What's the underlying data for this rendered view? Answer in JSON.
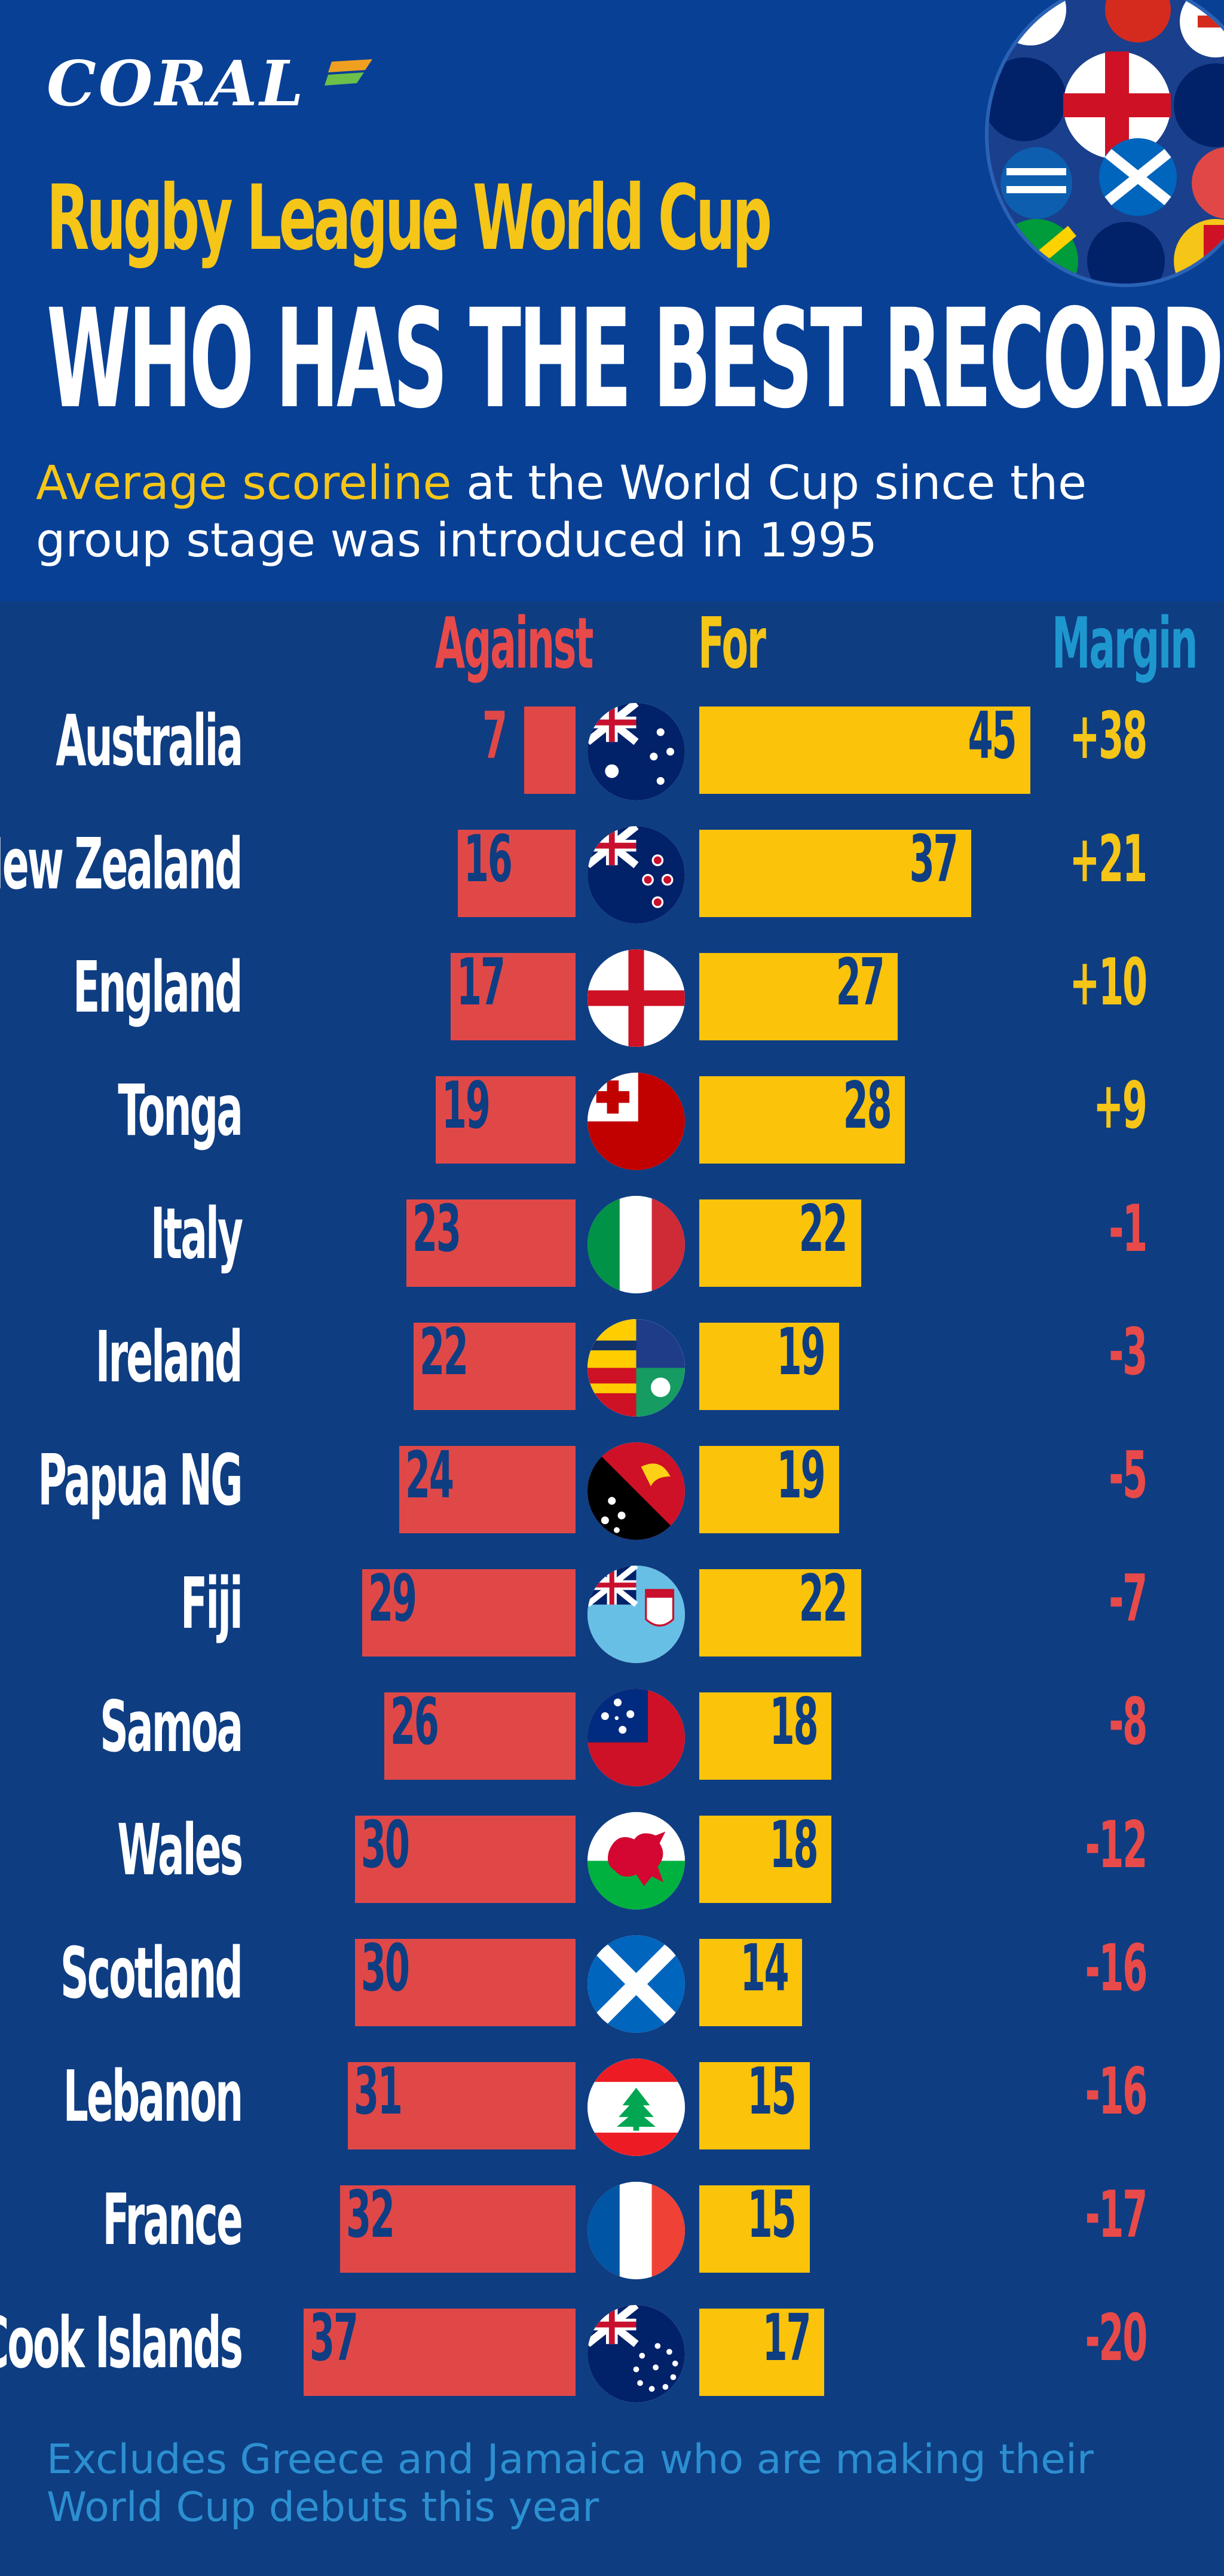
{
  "brand": {
    "name": "CORAL"
  },
  "header": {
    "title_line_1": "Rugby League World Cup",
    "title_line_2": "WHO HAS THE BEST RECORD?",
    "subtitle_highlight": "Average scoreline",
    "subtitle_rest": " at the World Cup since the group stage was introduced in 1995"
  },
  "columns": {
    "against": "Against",
    "for": "For",
    "margin": "Margin"
  },
  "colors": {
    "background": "#0e3d82",
    "header_background": "#084096",
    "against": "#e04848",
    "for": "#fcc30b",
    "margin_header": "#1e97cf",
    "positive_margin": "#f5c518",
    "negative_margin": "#e84a4a"
  },
  "chart_data": {
    "type": "bar",
    "title": "Average scoreline at the World Cup since the group stage was introduced in 1995",
    "categories": [
      "Australia",
      "New Zealand",
      "England",
      "Tonga",
      "Italy",
      "Ireland",
      "Papua NG",
      "Fiji",
      "Samoa",
      "Wales",
      "Scotland",
      "Lebanon",
      "France",
      "Cook Islands"
    ],
    "series": [
      {
        "name": "Against",
        "values": [
          7,
          16,
          17,
          19,
          23,
          22,
          24,
          29,
          26,
          30,
          30,
          31,
          32,
          37
        ]
      },
      {
        "name": "For",
        "values": [
          45,
          37,
          27,
          28,
          22,
          19,
          19,
          22,
          18,
          18,
          14,
          15,
          15,
          17
        ]
      }
    ],
    "margin": [
      "+38",
      "+21",
      "+10",
      "+9",
      "-1",
      "-3",
      "-5",
      "-7",
      "-8",
      "-12",
      "-16",
      "-16",
      "-17",
      "-20"
    ],
    "flags": [
      "australia-flag-icon",
      "new-zealand-flag-icon",
      "england-flag-icon",
      "tonga-flag-icon",
      "italy-flag-icon",
      "ireland-flag-icon",
      "papua-new-guinea-flag-icon",
      "fiji-flag-icon",
      "samoa-flag-icon",
      "wales-flag-icon",
      "scotland-flag-icon",
      "lebanon-flag-icon",
      "france-flag-icon",
      "cook-islands-flag-icon"
    ]
  },
  "footnote": "Excludes Greece and Jamaica who are making their World Cup debuts this year"
}
